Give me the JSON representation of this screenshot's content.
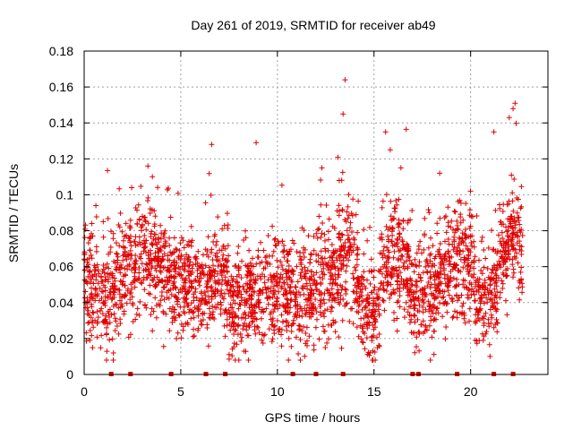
{
  "chart_data": {
    "type": "scatter",
    "title": "Day 261 of 2019, SRMTID for receiver ab49",
    "xlabel": "GPS time / hours",
    "ylabel": "SRMTID / TECUs",
    "xlim": [
      0,
      24
    ],
    "ylim": [
      0,
      0.18
    ],
    "xticks": [
      0,
      5,
      10,
      15,
      20
    ],
    "xtick_labels": [
      "0",
      "5",
      "10",
      "15",
      "20"
    ],
    "yticks": [
      0,
      0.02,
      0.04,
      0.06,
      0.08,
      0.1,
      0.12,
      0.14,
      0.16,
      0.18
    ],
    "ytick_labels": [
      "0",
      "0.02",
      "0.04",
      "0.06",
      "0.08",
      "0.1",
      "0.12",
      "0.14",
      "0.16",
      "0.18"
    ],
    "grid": true,
    "marker": "+",
    "color": "#e00000",
    "data_extent_hours": [
      0,
      22.7
    ],
    "notable_points": [
      {
        "x": 13.5,
        "y": 0.164
      },
      {
        "x": 13.4,
        "y": 0.145
      },
      {
        "x": 22.3,
        "y": 0.151
      },
      {
        "x": 22.2,
        "y": 0.148
      },
      {
        "x": 22.0,
        "y": 0.143
      },
      {
        "x": 15.6,
        "y": 0.135
      },
      {
        "x": 21.2,
        "y": 0.135
      },
      {
        "x": 6.6,
        "y": 0.128
      },
      {
        "x": 8.9,
        "y": 0.129
      },
      {
        "x": 3.3,
        "y": 0.116
      },
      {
        "x": 12.3,
        "y": 0.115
      },
      {
        "x": 18.4,
        "y": 0.112
      },
      {
        "x": 14.8,
        "y": 0.012
      },
      {
        "x": 21.0,
        "y": 0.01
      }
    ],
    "zero_markers_hours": [
      1.4,
      2.4,
      4.5,
      6.3,
      7.3,
      10.8,
      12.0,
      13.4,
      17.0,
      17.3,
      19.3,
      21.2,
      22.2
    ],
    "series": [
      {
        "name": "SRMTID",
        "segments": [
          {
            "start": 0.0,
            "end": 2.5,
            "mean": [
              0.055,
              0.045,
              0.06
            ],
            "spread": 0.016
          },
          {
            "start": 2.5,
            "end": 4.5,
            "mean": [
              0.06,
              0.065,
              0.055
            ],
            "spread": 0.015
          },
          {
            "start": 4.5,
            "end": 7.5,
            "mean": [
              0.05,
              0.05,
              0.055
            ],
            "spread": 0.014
          },
          {
            "start": 7.5,
            "end": 9.5,
            "mean": [
              0.035,
              0.045,
              0.05
            ],
            "spread": 0.013
          },
          {
            "start": 9.5,
            "end": 12.5,
            "mean": [
              0.05,
              0.045,
              0.05
            ],
            "spread": 0.015
          },
          {
            "start": 12.5,
            "end": 14.0,
            "mean": [
              0.05,
              0.065,
              0.06
            ],
            "spread": 0.016
          },
          {
            "start": 14.0,
            "end": 15.3,
            "mean": [
              0.05,
              0.035,
              0.03
            ],
            "spread": 0.012
          },
          {
            "start": 15.3,
            "end": 16.8,
            "mean": [
              0.06,
              0.065,
              0.06
            ],
            "spread": 0.015
          },
          {
            "start": 16.8,
            "end": 18.7,
            "mean": [
              0.045,
              0.04,
              0.055
            ],
            "spread": 0.013
          },
          {
            "start": 18.7,
            "end": 20.2,
            "mean": [
              0.06,
              0.065,
              0.06
            ],
            "spread": 0.015
          },
          {
            "start": 20.2,
            "end": 21.4,
            "mean": [
              0.045,
              0.04,
              0.05
            ],
            "spread": 0.013
          },
          {
            "start": 21.4,
            "end": 22.7,
            "mean": [
              0.065,
              0.075,
              0.07
            ],
            "spread": 0.013
          }
        ],
        "points_per_hour": 125
      }
    ]
  }
}
